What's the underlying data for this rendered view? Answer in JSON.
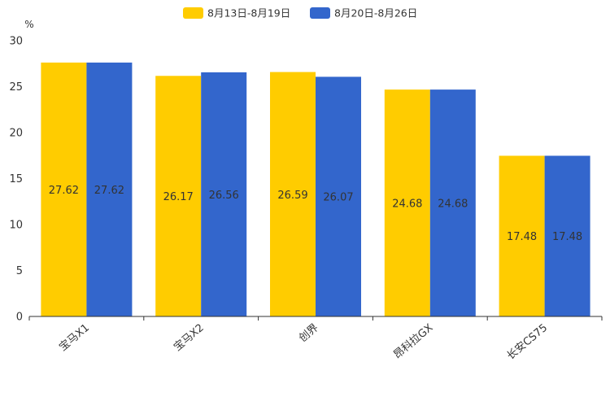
{
  "chart_data": {
    "type": "bar",
    "title": "",
    "xlabel": "",
    "ylabel": "%",
    "ylim": [
      0,
      30
    ],
    "yticks": [
      0,
      5,
      10,
      15,
      20,
      25,
      30
    ],
    "categories": [
      "宝马X1",
      "宝马X2",
      "创界",
      "昂科拉GX",
      "长安CS75"
    ],
    "series": [
      {
        "name": "8月13日-8月19日",
        "color": "#FFCC00",
        "values": [
          27.62,
          26.17,
          26.59,
          24.68,
          17.48
        ]
      },
      {
        "name": "8月20日-8月26日",
        "color": "#3366CC",
        "values": [
          27.62,
          26.56,
          26.07,
          24.68,
          17.48
        ]
      }
    ],
    "legend_position": "top-center",
    "grid": false,
    "data_labels": true
  }
}
